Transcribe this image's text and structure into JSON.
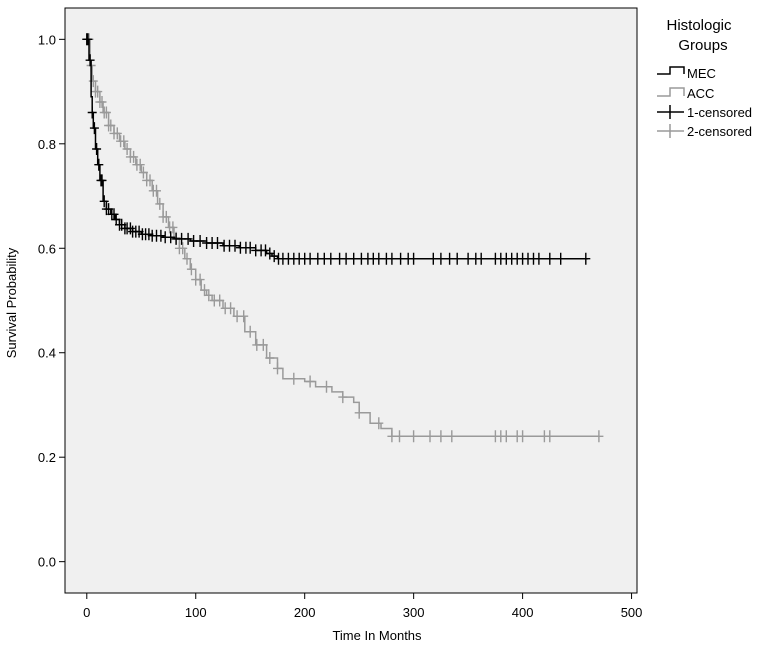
{
  "chart_data": {
    "type": "line",
    "subtype": "kaplan-meier",
    "xlabel": "Time In Months",
    "ylabel": "Survival Probability",
    "xlim": [
      -20,
      505
    ],
    "ylim": [
      -0.06,
      1.06
    ],
    "x_ticks": [
      0,
      100,
      200,
      300,
      400,
      500
    ],
    "y_ticks": [
      0.0,
      0.2,
      0.4,
      0.6,
      0.8,
      1.0
    ],
    "y_tick_labels": [
      "0.0",
      "0.2",
      "0.4",
      "0.6",
      "0.8",
      "1.0"
    ],
    "grid": false,
    "legend_position": "right, outside plot",
    "legend_title": "Histologic Groups",
    "legend_title_lines": [
      "Histologic",
      "Groups"
    ],
    "legend_entries": [
      "MEC",
      "ACC",
      "1-censored",
      "2-censored"
    ],
    "plot_background": "#f0f0f0",
    "series": [
      {
        "name": "MEC",
        "color": "#000000",
        "points": [
          [
            0,
            1.0
          ],
          [
            2,
            0.96
          ],
          [
            4,
            0.89
          ],
          [
            5,
            0.86
          ],
          [
            6,
            0.83
          ],
          [
            8,
            0.79
          ],
          [
            10,
            0.76
          ],
          [
            12,
            0.73
          ],
          [
            15,
            0.69
          ],
          [
            18,
            0.675
          ],
          [
            22,
            0.665
          ],
          [
            26,
            0.655
          ],
          [
            30,
            0.645
          ],
          [
            35,
            0.638
          ],
          [
            42,
            0.632
          ],
          [
            50,
            0.627
          ],
          [
            60,
            0.624
          ],
          [
            70,
            0.621
          ],
          [
            80,
            0.618
          ],
          [
            95,
            0.614
          ],
          [
            110,
            0.61
          ],
          [
            125,
            0.605
          ],
          [
            140,
            0.601
          ],
          [
            155,
            0.596
          ],
          [
            165,
            0.59
          ],
          [
            170,
            0.585
          ],
          [
            175,
            0.58
          ],
          [
            460,
            0.58
          ]
        ],
        "censored_x": [
          0,
          1,
          3,
          5,
          7,
          9,
          11,
          13,
          14,
          16,
          18,
          20,
          23,
          25,
          27,
          30,
          32,
          35,
          37,
          40,
          42,
          45,
          48,
          51,
          54,
          57,
          60,
          64,
          68,
          72,
          77,
          82,
          87,
          93,
          98,
          104,
          110,
          115,
          120,
          126,
          131,
          136,
          141,
          146,
          150,
          155,
          160,
          164,
          168,
          172,
          176,
          180,
          185,
          190,
          195,
          200,
          205,
          212,
          218,
          224,
          232,
          238,
          245,
          252,
          258,
          263,
          268,
          275,
          280,
          288,
          295,
          300,
          318,
          325,
          333,
          340,
          350,
          357,
          362,
          375,
          380,
          385,
          390,
          395,
          400,
          405,
          410,
          415,
          425,
          435,
          458
        ]
      },
      {
        "name": "ACC",
        "color": "#9a9a9a",
        "points": [
          [
            0,
            1.0
          ],
          [
            3,
            0.95
          ],
          [
            5,
            0.92
          ],
          [
            8,
            0.9
          ],
          [
            12,
            0.88
          ],
          [
            15,
            0.86
          ],
          [
            20,
            0.835
          ],
          [
            25,
            0.82
          ],
          [
            30,
            0.805
          ],
          [
            35,
            0.79
          ],
          [
            40,
            0.775
          ],
          [
            45,
            0.76
          ],
          [
            50,
            0.745
          ],
          [
            55,
            0.73
          ],
          [
            60,
            0.71
          ],
          [
            65,
            0.685
          ],
          [
            70,
            0.66
          ],
          [
            75,
            0.64
          ],
          [
            80,
            0.62
          ],
          [
            85,
            0.6
          ],
          [
            90,
            0.58
          ],
          [
            95,
            0.56
          ],
          [
            100,
            0.54
          ],
          [
            105,
            0.52
          ],
          [
            110,
            0.51
          ],
          [
            115,
            0.5
          ],
          [
            125,
            0.485
          ],
          [
            135,
            0.47
          ],
          [
            145,
            0.44
          ],
          [
            155,
            0.415
          ],
          [
            165,
            0.39
          ],
          [
            175,
            0.37
          ],
          [
            180,
            0.35
          ],
          [
            200,
            0.345
          ],
          [
            210,
            0.335
          ],
          [
            225,
            0.325
          ],
          [
            235,
            0.315
          ],
          [
            245,
            0.305
          ],
          [
            250,
            0.285
          ],
          [
            260,
            0.265
          ],
          [
            270,
            0.255
          ],
          [
            280,
            0.24
          ],
          [
            470,
            0.24
          ]
        ],
        "censored_x": [
          0,
          2,
          4,
          6,
          8,
          10,
          12,
          14,
          16,
          18,
          20,
          22,
          25,
          28,
          31,
          34,
          37,
          40,
          43,
          46,
          49,
          52,
          55,
          58,
          61,
          64,
          67,
          70,
          73,
          76,
          79,
          82,
          85,
          88,
          92,
          96,
          100,
          104,
          108,
          112,
          117,
          122,
          127,
          132,
          138,
          144,
          150,
          156,
          162,
          168,
          175,
          190,
          205,
          220,
          235,
          250,
          268,
          280,
          287,
          300,
          315,
          325,
          335,
          375,
          380,
          385,
          395,
          400,
          420,
          425,
          470
        ]
      }
    ]
  }
}
